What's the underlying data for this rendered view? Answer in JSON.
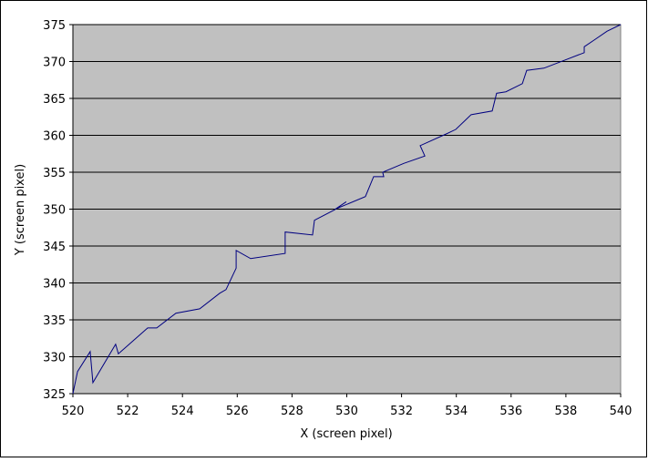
{
  "chart_data": {
    "type": "line",
    "x_label": "X (screen pixel)",
    "y_label": "Y (screen pixel)",
    "x": [
      520.0,
      520.17,
      520.63,
      520.73,
      521.56,
      521.66,
      522.73,
      523.06,
      523.76,
      524.63,
      525.36,
      525.59,
      525.82,
      525.96,
      525.96,
      526.49,
      527.75,
      527.75,
      528.75,
      528.82,
      529.55,
      529.98,
      529.58,
      530.68,
      530.98,
      531.35,
      531.31,
      532.08,
      532.85,
      532.68,
      533.64,
      533.98,
      534.54,
      535.31,
      535.47,
      535.81,
      536.41,
      536.57,
      537.2,
      537.9,
      538.67,
      538.67,
      539.03,
      539.5,
      540.0
    ],
    "series": [
      {
        "color": "#000080",
        "values": [
          325.0,
          328.0,
          330.7,
          326.5,
          331.7,
          330.4,
          333.9,
          333.9,
          335.9,
          336.5,
          338.6,
          339.1,
          340.9,
          342.0,
          344.4,
          343.3,
          344.0,
          346.9,
          346.5,
          348.5,
          349.9,
          351.0,
          350.0,
          351.7,
          354.4,
          354.4,
          355.0,
          356.2,
          357.2,
          358.6,
          360.2,
          360.8,
          362.8,
          363.3,
          365.7,
          365.9,
          367.0,
          368.8,
          369.1,
          370.1,
          371.2,
          372.0,
          372.9,
          374.1,
          375.0
        ]
      }
    ],
    "xlim": [
      520,
      540
    ],
    "ylim": [
      325,
      375
    ],
    "xticks": [
      520,
      522,
      524,
      526,
      528,
      530,
      532,
      534,
      536,
      538,
      540
    ],
    "yticks": [
      325,
      330,
      335,
      340,
      345,
      350,
      355,
      360,
      365,
      370,
      375
    ],
    "grid": true,
    "plot_background": "#c0c0c0"
  }
}
